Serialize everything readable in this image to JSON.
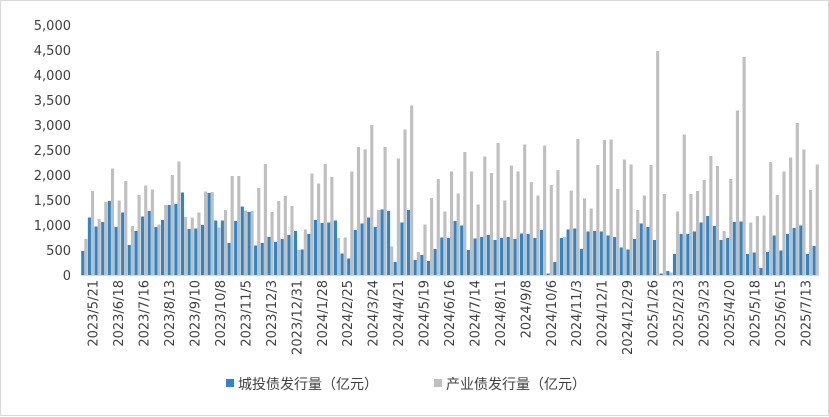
{
  "chart_data": {
    "type": "bar",
    "ylim": [
      0,
      5000
    ],
    "yticks": [
      "0",
      "500",
      "1,000",
      "1,500",
      "2,000",
      "2,500",
      "3,000",
      "3,500",
      "4,000",
      "4,500",
      "5,000"
    ],
    "grid": false,
    "legend_position": "bottom",
    "x_tick_labels": [
      "2023/5/21",
      "2023/6/18",
      "2023/7/16",
      "2023/8/13",
      "2023/9/10",
      "2023/10/8",
      "2023/11/5",
      "2023/12/3",
      "2023/12/31",
      "2024/1/28",
      "2024/2/25",
      "2024/3/24",
      "2024/4/21",
      "2024/5/19",
      "2024/6/16",
      "2024/7/14",
      "2024/8/11",
      "2024/9/8",
      "2024/10/6",
      "2024/11/3",
      "2024/12/1",
      "2024/12/29",
      "2025/1/26",
      "2025/2/23",
      "2025/3/23",
      "2025/4/20",
      "2025/5/18",
      "2025/6/15",
      "2025/7/13"
    ],
    "series": [
      {
        "name": "城投债发行量（亿元）",
        "color": "#2e86c8",
        "values": [
          480,
          1150,
          970,
          1060,
          1480,
          960,
          1250,
          600,
          880,
          1170,
          1280,
          960,
          1100,
          1400,
          1420,
          1650,
          920,
          930,
          1000,
          1640,
          1090,
          1090,
          640,
          1080,
          1370,
          1260,
          590,
          640,
          760,
          660,
          720,
          800,
          880,
          510,
          820,
          1100,
          1040,
          1050,
          1090,
          430,
          330,
          900,
          1030,
          1150,
          960,
          1310,
          1280,
          260,
          1050,
          1300,
          300,
          400,
          280,
          520,
          750,
          740,
          1080,
          990,
          500,
          730,
          760,
          800,
          700,
          740,
          760,
          720,
          830,
          820,
          740,
          900,
          30,
          260,
          740,
          910,
          930,
          520,
          870,
          880,
          870,
          790,
          760,
          550,
          510,
          720,
          1030,
          960,
          700,
          30,
          80,
          420,
          820,
          820,
          870,
          1050,
          1180,
          980,
          700,
          740,
          1060,
          1070,
          420,
          450,
          140,
          460,
          790,
          490,
          820,
          940,
          990,
          420,
          580
        ]
      },
      {
        "name": "产业债发行量（亿元）",
        "color": "#bfbfbf",
        "values": [
          720,
          1680,
          1120,
          1460,
          2130,
          1490,
          1880,
          980,
          1600,
          1790,
          1710,
          1010,
          1400,
          2000,
          2270,
          1160,
          1150,
          1250,
          1670,
          1660,
          950,
          1300,
          1980,
          1980,
          1290,
          1280,
          1740,
          2220,
          1260,
          1480,
          1580,
          1380,
          500,
          910,
          2030,
          1830,
          2220,
          1960,
          740,
          750,
          2070,
          2560,
          2510,
          3000,
          1300,
          2560,
          570,
          2330,
          2910,
          3390,
          460,
          1010,
          1540,
          1920,
          1270,
          2070,
          1630,
          2460,
          2070,
          1410,
          2370,
          2040,
          2640,
          1490,
          2190,
          2070,
          2610,
          1860,
          1590,
          2590,
          1800,
          2100,
          760,
          1690,
          2720,
          1530,
          1330,
          2200,
          2700,
          2710,
          1720,
          2310,
          2210,
          1300,
          1590,
          2200,
          4480,
          1620,
          50,
          1270,
          2810,
          1620,
          1680,
          1900,
          2380,
          2180,
          880,
          1920,
          3290,
          4360,
          1050,
          1180,
          1190,
          2260,
          1600,
          2070,
          2350,
          3040,
          2510,
          1700,
          2210
        ]
      }
    ]
  }
}
